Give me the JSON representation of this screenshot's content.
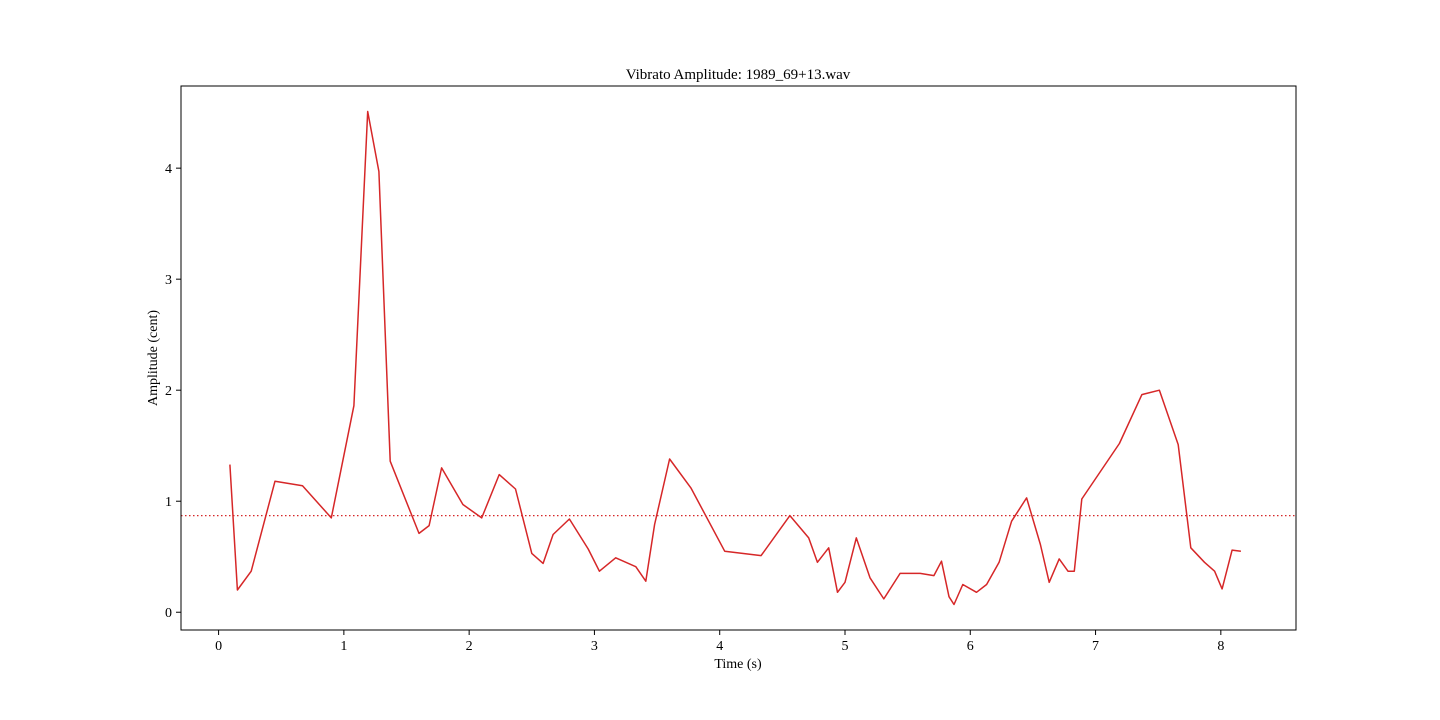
{
  "chart_data": {
    "type": "line",
    "title": "Vibrato Amplitude: 1989_69+13.wav",
    "xlabel": "Time (s)",
    "ylabel": "Amplitude (cent)",
    "xlim": [
      -0.3,
      8.6
    ],
    "ylim": [
      -0.16,
      4.74
    ],
    "xticks": [
      0,
      1,
      2,
      3,
      4,
      5,
      6,
      7,
      8
    ],
    "yticks": [
      0,
      1,
      2,
      3,
      4
    ],
    "grid": false,
    "series": [
      {
        "color": "#d62728",
        "x": [
          0.09,
          0.15,
          0.26,
          0.45,
          0.67,
          0.9,
          1.08,
          1.19,
          1.28,
          1.37,
          1.6,
          1.68,
          1.78,
          1.95,
          2.1,
          2.24,
          2.37,
          2.5,
          2.59,
          2.67,
          2.8,
          2.95,
          3.04,
          3.17,
          3.33,
          3.41,
          3.48,
          3.6,
          3.77,
          4.04,
          4.33,
          4.56,
          4.71,
          4.78,
          4.87,
          4.94,
          5.0,
          5.09,
          5.2,
          5.31,
          5.44,
          5.6,
          5.71,
          5.77,
          5.83,
          5.87,
          5.94,
          6.05,
          6.13,
          6.23,
          6.33,
          6.45,
          6.56,
          6.63,
          6.71,
          6.78,
          6.83,
          6.89,
          7.19,
          7.37,
          7.51,
          7.66,
          7.76,
          7.87,
          7.95,
          8.01,
          8.09,
          8.16
        ],
        "y": [
          1.33,
          0.2,
          0.37,
          1.18,
          1.14,
          0.85,
          1.86,
          4.51,
          3.97,
          1.36,
          0.71,
          0.78,
          1.3,
          0.97,
          0.85,
          1.24,
          1.11,
          0.53,
          0.44,
          0.7,
          0.84,
          0.57,
          0.37,
          0.49,
          0.41,
          0.28,
          0.79,
          1.38,
          1.12,
          0.55,
          0.51,
          0.87,
          0.67,
          0.45,
          0.58,
          0.18,
          0.27,
          0.67,
          0.31,
          0.12,
          0.35,
          0.35,
          0.33,
          0.46,
          0.14,
          0.07,
          0.25,
          0.18,
          0.25,
          0.45,
          0.82,
          1.03,
          0.61,
          0.27,
          0.48,
          0.37,
          0.37,
          1.02,
          1.52,
          1.96,
          2.0,
          1.51,
          0.58,
          0.45,
          0.37,
          0.21,
          0.56,
          0.55
        ]
      }
    ],
    "reference_line": {
      "y": 0.87,
      "style": "dotted",
      "color": "#d62728"
    }
  }
}
